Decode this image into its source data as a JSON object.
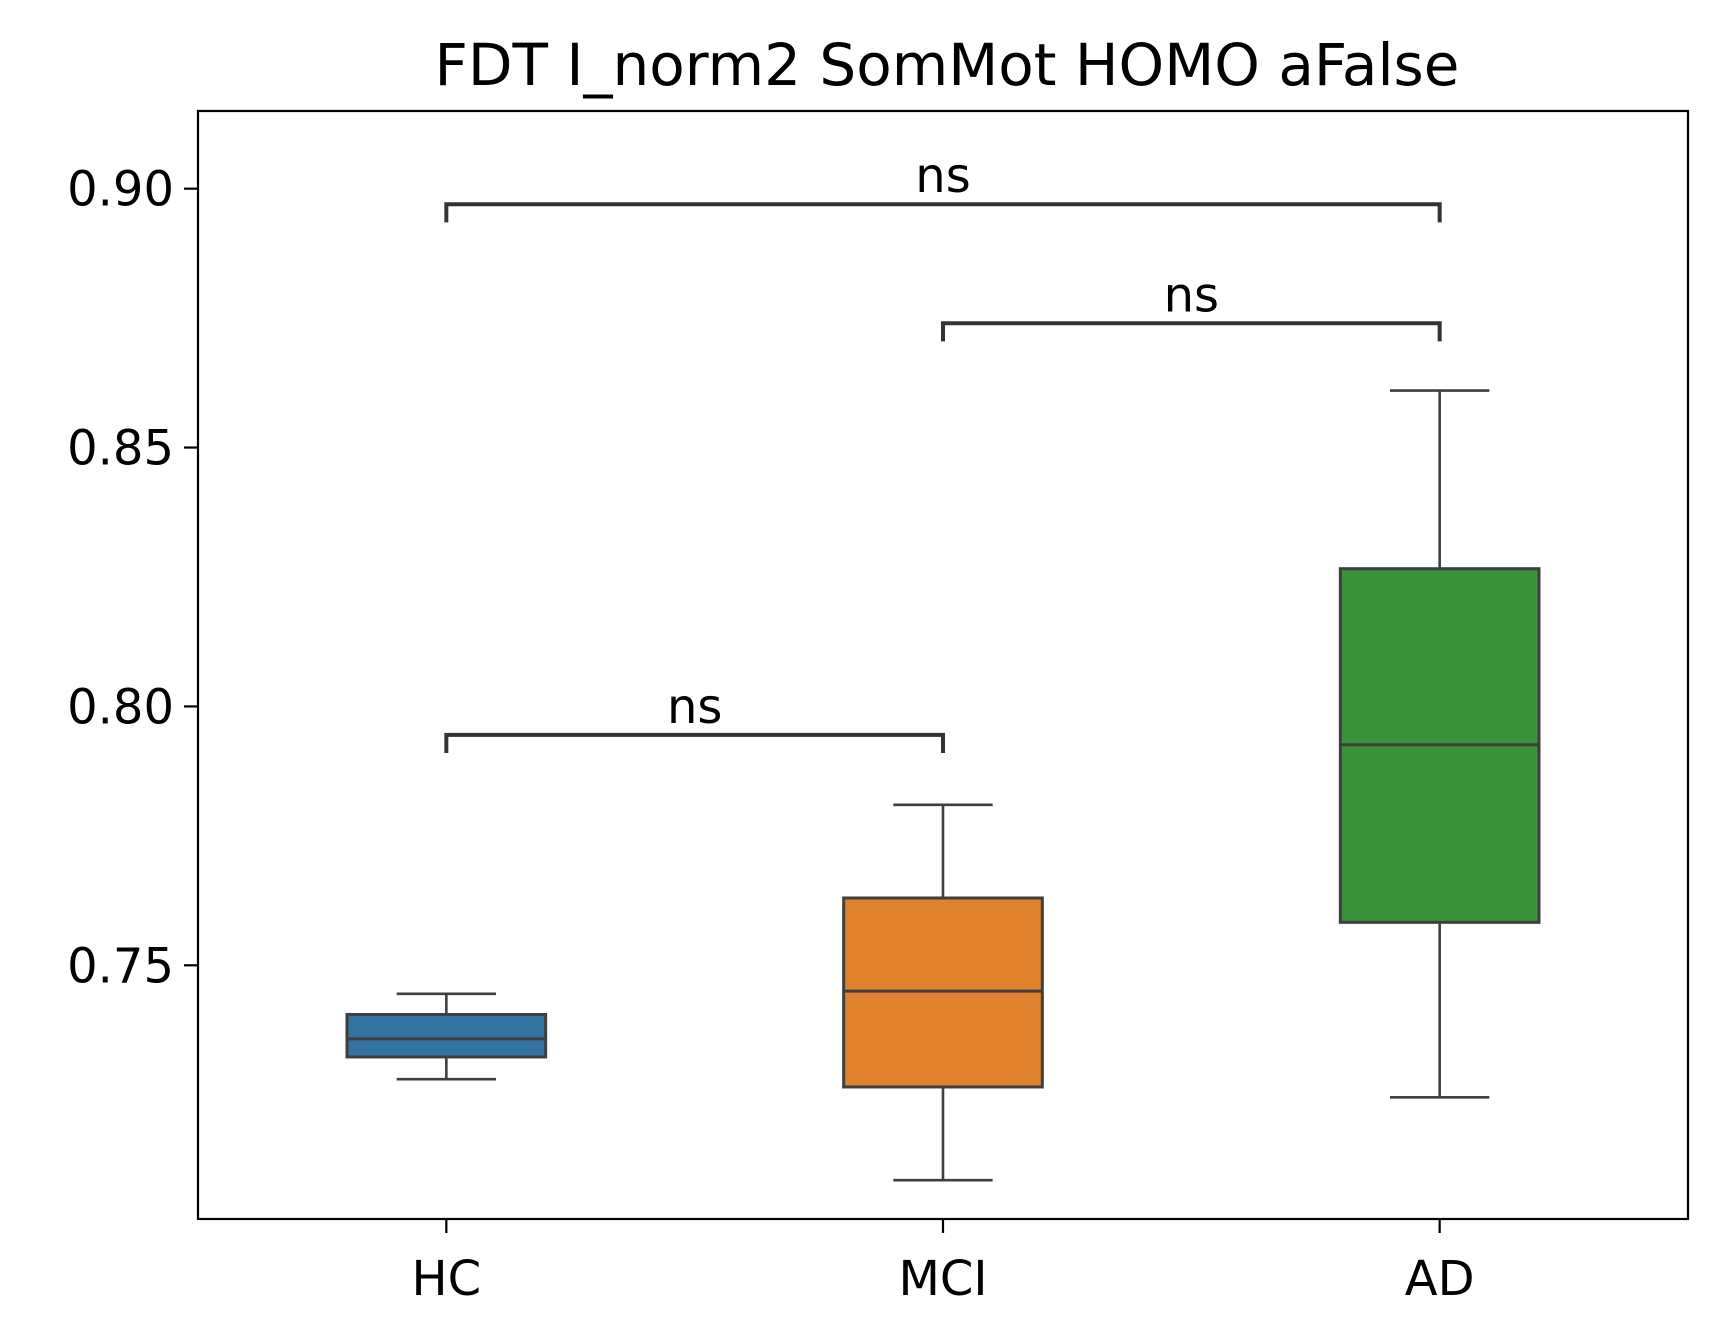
{
  "chart_data": {
    "type": "box",
    "title": "FDT I_norm2 SomMot HOMO aFalse",
    "xlabel": "",
    "ylabel": "",
    "ylim": [
      0.701,
      0.915
    ],
    "yticks": [
      0.75,
      0.8,
      0.85,
      0.9
    ],
    "ytick_labels": [
      "0.75",
      "0.80",
      "0.85",
      "0.90"
    ],
    "categories": [
      "HC",
      "MCI",
      "AD"
    ],
    "boxes": [
      {
        "category": "HC",
        "whisker_low": 0.728,
        "q1": 0.7323,
        "median": 0.7358,
        "q3": 0.7405,
        "whisker_high": 0.7445,
        "color": "#3274a1"
      },
      {
        "category": "MCI",
        "whisker_low": 0.7085,
        "q1": 0.7265,
        "median": 0.745,
        "q3": 0.763,
        "whisker_high": 0.781,
        "color": "#e1812c"
      },
      {
        "category": "AD",
        "whisker_low": 0.7245,
        "q1": 0.7583,
        "median": 0.7926,
        "q3": 0.8266,
        "whisker_high": 0.861,
        "color": "#3a923a"
      }
    ],
    "annotations": [
      {
        "from": "HC",
        "to": "AD",
        "y": 0.897,
        "tick_drop": 0.0035,
        "label": "ns"
      },
      {
        "from": "MCI",
        "to": "AD",
        "y": 0.874,
        "tick_drop": 0.0035,
        "label": "ns"
      },
      {
        "from": "HC",
        "to": "MCI",
        "y": 0.7945,
        "tick_drop": 0.0035,
        "label": "ns"
      }
    ],
    "grid": false,
    "legend": "none"
  }
}
